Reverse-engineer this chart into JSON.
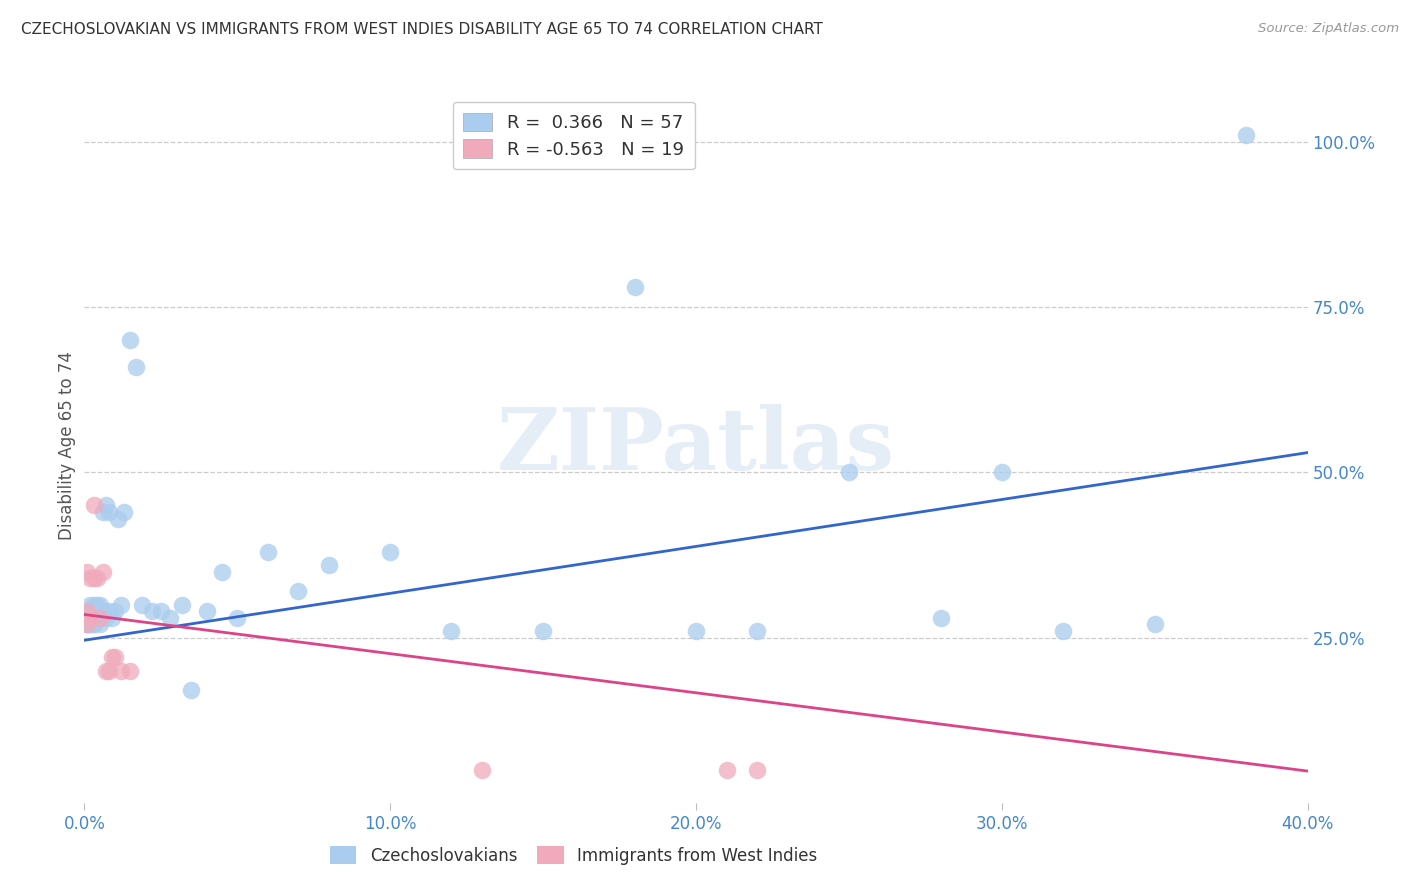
{
  "title": "CZECHOSLOVAKIAN VS IMMIGRANTS FROM WEST INDIES DISABILITY AGE 65 TO 74 CORRELATION CHART",
  "source": "Source: ZipAtlas.com",
  "ylabel": "Disability Age 65 to 74",
  "x_tick_labels": [
    "0.0%",
    "10.0%",
    "20.0%",
    "30.0%",
    "40.0%"
  ],
  "x_tick_values": [
    0.0,
    0.1,
    0.2,
    0.3,
    0.4
  ],
  "y_tick_labels": [
    "25.0%",
    "50.0%",
    "75.0%",
    "100.0%"
  ],
  "y_tick_values": [
    0.25,
    0.5,
    0.75,
    1.0
  ],
  "xlim": [
    0.0,
    0.4
  ],
  "ylim": [
    0.0,
    1.08
  ],
  "blue_R": "0.366",
  "blue_N": "57",
  "pink_R": "-0.563",
  "pink_N": "19",
  "blue_color": "#aaccee",
  "pink_color": "#f0aabb",
  "blue_line_color": "#3366cc",
  "pink_line_color": "#dd4488",
  "axis_color": "#4488cc",
  "watermark": "ZIPatlas",
  "blue_x": [
    0.001,
    0.001,
    0.001,
    0.001,
    0.002,
    0.002,
    0.002,
    0.002,
    0.002,
    0.003,
    0.003,
    0.003,
    0.003,
    0.004,
    0.004,
    0.004,
    0.005,
    0.005,
    0.005,
    0.005,
    0.006,
    0.006,
    0.007,
    0.007,
    0.008,
    0.008,
    0.009,
    0.01,
    0.011,
    0.012,
    0.013,
    0.015,
    0.017,
    0.019,
    0.022,
    0.025,
    0.028,
    0.032,
    0.035,
    0.04,
    0.045,
    0.05,
    0.06,
    0.07,
    0.08,
    0.1,
    0.12,
    0.15,
    0.18,
    0.2,
    0.22,
    0.25,
    0.28,
    0.3,
    0.32,
    0.35,
    0.38
  ],
  "blue_y": [
    0.29,
    0.28,
    0.27,
    0.27,
    0.3,
    0.29,
    0.28,
    0.27,
    0.27,
    0.3,
    0.28,
    0.27,
    0.27,
    0.3,
    0.29,
    0.28,
    0.3,
    0.29,
    0.28,
    0.27,
    0.44,
    0.29,
    0.45,
    0.28,
    0.44,
    0.29,
    0.28,
    0.29,
    0.43,
    0.3,
    0.44,
    0.7,
    0.66,
    0.3,
    0.29,
    0.29,
    0.28,
    0.3,
    0.17,
    0.29,
    0.35,
    0.28,
    0.38,
    0.32,
    0.36,
    0.38,
    0.26,
    0.26,
    0.78,
    0.26,
    0.26,
    0.5,
    0.28,
    0.5,
    0.26,
    0.27,
    1.01
  ],
  "pink_x": [
    0.001,
    0.001,
    0.001,
    0.002,
    0.002,
    0.003,
    0.003,
    0.004,
    0.005,
    0.006,
    0.007,
    0.008,
    0.009,
    0.01,
    0.012,
    0.015,
    0.13,
    0.21,
    0.22
  ],
  "pink_y": [
    0.29,
    0.27,
    0.35,
    0.34,
    0.28,
    0.34,
    0.45,
    0.34,
    0.28,
    0.35,
    0.2,
    0.2,
    0.22,
    0.22,
    0.2,
    0.2,
    0.05,
    0.05,
    0.05
  ],
  "blue_line_x": [
    0.0,
    0.4
  ],
  "blue_line_y": [
    0.246,
    0.53
  ],
  "pink_line_x": [
    0.0,
    0.4
  ],
  "pink_line_y": [
    0.285,
    0.048
  ]
}
